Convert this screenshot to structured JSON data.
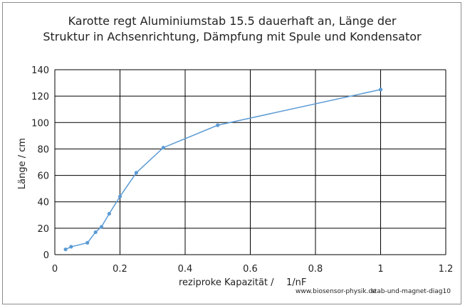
{
  "chart_data": {
    "type": "line",
    "title_lines": [
      "Karotte regt Aluminiumstab 15.5 dauerhaft an,  Länge der",
      "Struktur in Achsenrichtung, Dämpfung mit Spule und Kondensator"
    ],
    "xlabel": "reziproke Kapazität /",
    "xlabel_unit": "1/nF",
    "ylabel": "Länge / cm",
    "xlim": [
      0,
      1.2
    ],
    "ylim": [
      0,
      140
    ],
    "x_ticks": [
      "0",
      "0.2",
      "0.4",
      "0.6",
      "0.8",
      "1",
      "1.2"
    ],
    "y_ticks": [
      "0",
      "20",
      "40",
      "60",
      "80",
      "100",
      "120",
      "140"
    ],
    "grid": true,
    "legend": "none",
    "series": [
      {
        "color": "#5b9bd5",
        "points": [
          {
            "x": 0.033,
            "y": 4
          },
          {
            "x": 0.05,
            "y": 6
          },
          {
            "x": 0.1,
            "y": 9
          },
          {
            "x": 0.125,
            "y": 17
          },
          {
            "x": 0.143,
            "y": 21
          },
          {
            "x": 0.167,
            "y": 31
          },
          {
            "x": 0.2,
            "y": 44
          },
          {
            "x": 0.25,
            "y": 62
          },
          {
            "x": 0.333,
            "y": 81
          },
          {
            "x": 0.5,
            "y": 98
          },
          {
            "x": 1.0,
            "y": 125
          }
        ]
      }
    ]
  },
  "footer": {
    "site": "www.biosensor-physik.de",
    "diagram_id": "stab-und-magnet-diag10"
  }
}
